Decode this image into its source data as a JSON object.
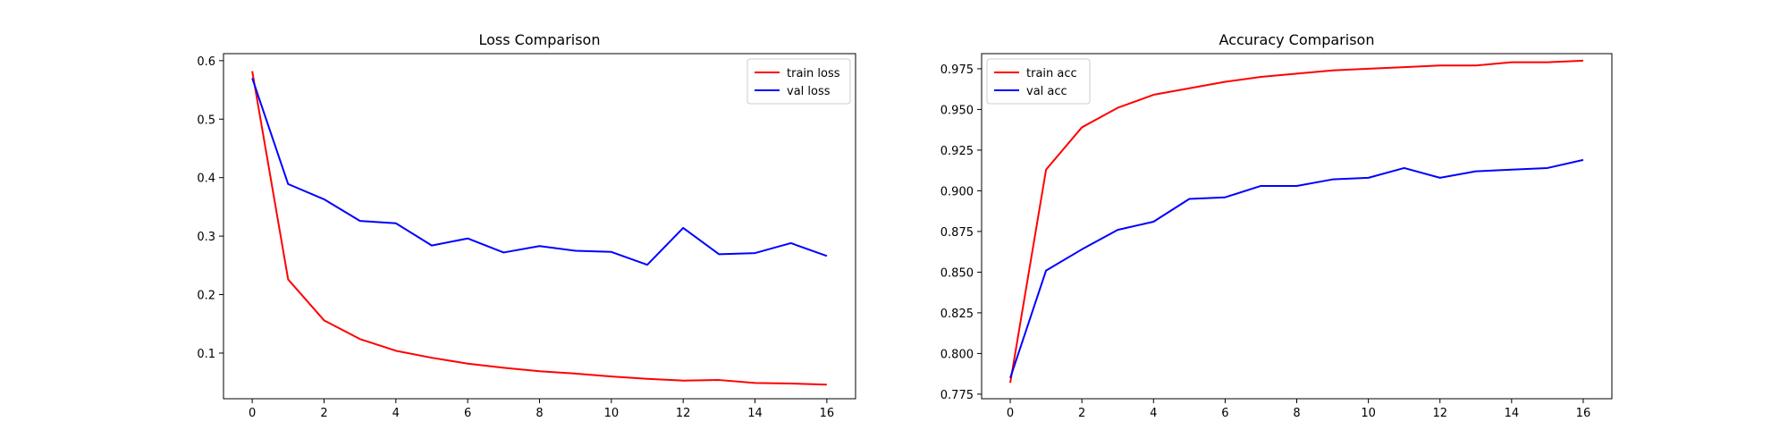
{
  "chart_data": [
    {
      "type": "line",
      "title": "Loss Comparison",
      "xlabel": "",
      "ylabel": "",
      "x": [
        0,
        1,
        2,
        3,
        4,
        5,
        6,
        7,
        8,
        9,
        10,
        11,
        12,
        13,
        14,
        15,
        16
      ],
      "xlim": [
        -0.8,
        16.8
      ],
      "ylim": [
        0.022,
        0.612
      ],
      "xticks": [
        0,
        2,
        4,
        6,
        8,
        10,
        12,
        14,
        16
      ],
      "yticks": [
        0.1,
        0.2,
        0.3,
        0.4,
        0.5,
        0.6
      ],
      "ytick_labels": [
        "0.1",
        "0.2",
        "0.3",
        "0.4",
        "0.5",
        "0.6"
      ],
      "grid": false,
      "legend": "top-right",
      "series": [
        {
          "name": "train loss",
          "color": "#ff0000",
          "values": [
            0.582,
            0.226,
            0.156,
            0.124,
            0.104,
            0.092,
            0.082,
            0.075,
            0.069,
            0.065,
            0.06,
            0.056,
            0.053,
            0.054,
            0.049,
            0.048,
            0.046
          ]
        },
        {
          "name": "val loss",
          "color": "#0000ff",
          "values": [
            0.57,
            0.389,
            0.363,
            0.326,
            0.322,
            0.284,
            0.296,
            0.272,
            0.283,
            0.275,
            0.273,
            0.251,
            0.314,
            0.269,
            0.271,
            0.288,
            0.266
          ]
        }
      ]
    },
    {
      "type": "line",
      "title": "Accuracy Comparison",
      "xlabel": "",
      "ylabel": "",
      "x": [
        0,
        1,
        2,
        3,
        4,
        5,
        6,
        7,
        8,
        9,
        10,
        11,
        12,
        13,
        14,
        15,
        16
      ],
      "xlim": [
        -0.8,
        16.8
      ],
      "ylim": [
        0.7722,
        0.9843
      ],
      "xticks": [
        0,
        2,
        4,
        6,
        8,
        10,
        12,
        14,
        16
      ],
      "yticks": [
        0.775,
        0.8,
        0.825,
        0.85,
        0.875,
        0.9,
        0.925,
        0.95,
        0.975
      ],
      "ytick_labels": [
        "0.775",
        "0.800",
        "0.825",
        "0.850",
        "0.875",
        "0.900",
        "0.925",
        "0.950",
        "0.975"
      ],
      "grid": false,
      "legend": "top-left",
      "series": [
        {
          "name": "train acc",
          "color": "#ff0000",
          "values": [
            0.782,
            0.913,
            0.939,
            0.951,
            0.959,
            0.963,
            0.967,
            0.97,
            0.972,
            0.974,
            0.975,
            0.976,
            0.977,
            0.977,
            0.979,
            0.979,
            0.98
          ]
        },
        {
          "name": "val acc",
          "color": "#0000ff",
          "values": [
            0.785,
            0.851,
            0.864,
            0.876,
            0.881,
            0.895,
            0.896,
            0.903,
            0.903,
            0.907,
            0.908,
            0.914,
            0.908,
            0.912,
            0.913,
            0.914,
            0.919
          ]
        }
      ]
    }
  ]
}
